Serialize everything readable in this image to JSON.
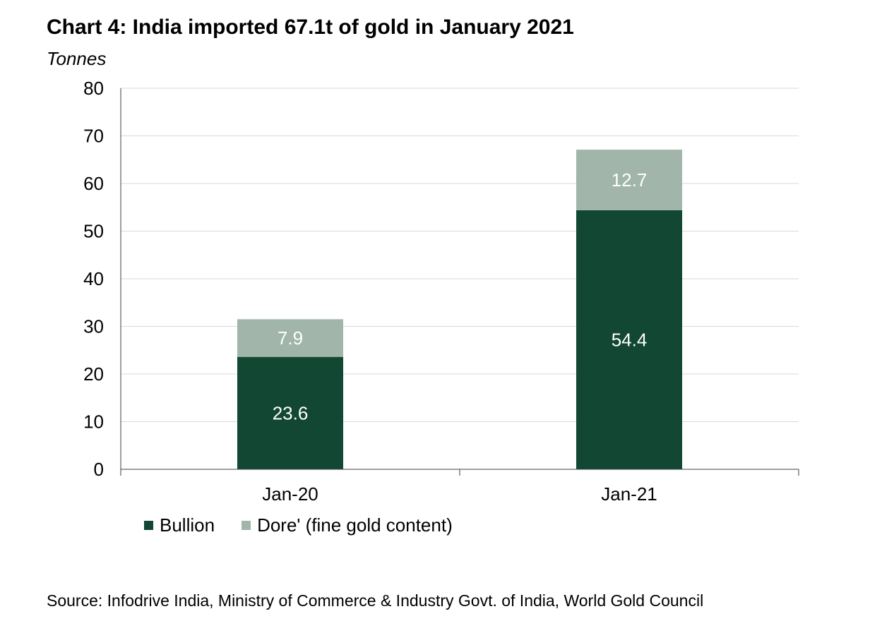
{
  "title": "Chart 4: India imported 67.1t of gold in January 2021",
  "unit_label": "Tonnes",
  "source": "Source: Infodrive India, Ministry of Commerce & Industry Govt. of India, World Gold Council",
  "colors": {
    "bullion": "#124734",
    "dore": "#a1b5aa",
    "gridline": "#d9d9d9",
    "axis": "#404040",
    "data_label": "#ffffff"
  },
  "chart_data": {
    "type": "bar",
    "stacked": true,
    "categories": [
      "Jan-20",
      "Jan-21"
    ],
    "series": [
      {
        "name": "Bullion",
        "values": [
          23.6,
          54.4
        ],
        "color": "#124734"
      },
      {
        "name": "Dore' (fine gold content)",
        "values": [
          7.9,
          12.7
        ],
        "color": "#a1b5aa"
      }
    ],
    "data_labels": [
      "23.6",
      "54.4",
      "7.9",
      "12.7"
    ],
    "ylim": [
      0,
      80
    ],
    "yticks": [
      0,
      10,
      20,
      30,
      40,
      50,
      60,
      70,
      80
    ],
    "grid": true,
    "legend": "bottom-left"
  }
}
